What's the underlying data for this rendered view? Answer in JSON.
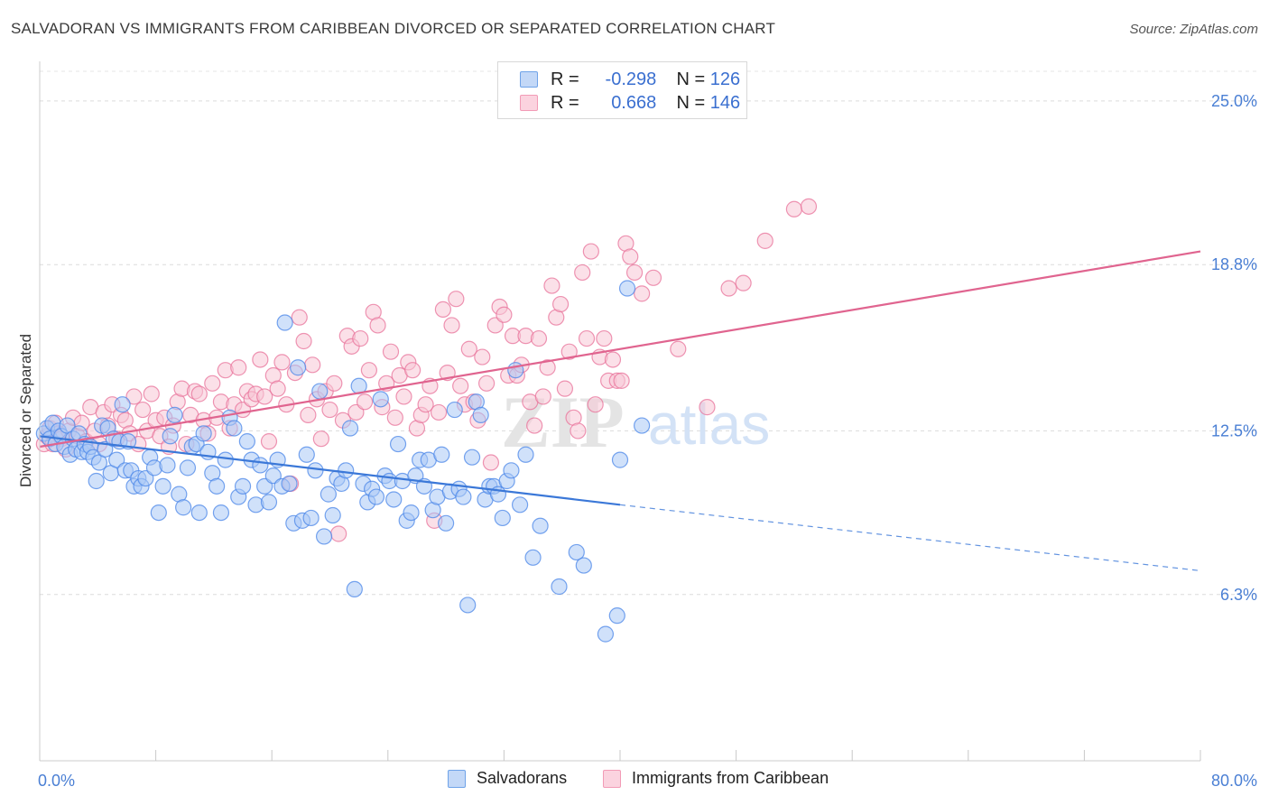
{
  "title": "SALVADORAN VS IMMIGRANTS FROM CARIBBEAN DIVORCED OR SEPARATED CORRELATION CHART",
  "source": "Source: ZipAtlas.com",
  "watermark": "ZIPatlas",
  "legend_top": {
    "rows": [
      {
        "r_label": "R =",
        "r_value": "-0.298",
        "n_label": "N =",
        "n_value": "126",
        "color": "#6fa3e8"
      },
      {
        "r_label": "R =",
        "r_value": "0.668",
        "n_label": "N =",
        "n_value": "146",
        "color": "#f29bb6"
      }
    ]
  },
  "legend_bottom": [
    {
      "label": "Salvadorans",
      "color": "#6fa3e8"
    },
    {
      "label": "Immigrants from Caribbean",
      "color": "#f29bb6"
    }
  ],
  "chart_data": {
    "type": "scatter",
    "ylabel": "Divorced or Separated",
    "xlim": [
      0,
      80
    ],
    "ylim": [
      0,
      26.5
    ],
    "x_tick_labels": {
      "min": "0.0%",
      "max": "80.0%"
    },
    "y_ticks": [
      {
        "value": 6.3,
        "label": "6.3%"
      },
      {
        "value": 12.5,
        "label": "12.5%"
      },
      {
        "value": 18.8,
        "label": "18.8%"
      },
      {
        "value": 25.0,
        "label": "25.0%"
      }
    ],
    "grid": true,
    "series": [
      {
        "name": "Salvadorans",
        "color": "#4a86e8",
        "fill": "#a9c8f5",
        "trend": {
          "x0": 0,
          "y0": 12.3,
          "x1": 40,
          "y1": 9.7,
          "x_end": 80,
          "y_end": 7.2
        },
        "points": [
          [
            0.3,
            12.4
          ],
          [
            0.5,
            12.6
          ],
          [
            0.7,
            12.2
          ],
          [
            0.9,
            12.8
          ],
          [
            1.1,
            12.0
          ],
          [
            1.3,
            12.5
          ],
          [
            1.5,
            12.3
          ],
          [
            1.7,
            11.9
          ],
          [
            1.9,
            12.7
          ],
          [
            2.1,
            11.6
          ],
          [
            2.3,
            12.2
          ],
          [
            2.5,
            11.8
          ],
          [
            2.7,
            12.4
          ],
          [
            2.9,
            11.7
          ],
          [
            3.1,
            12.0
          ],
          [
            3.3,
            11.7
          ],
          [
            3.5,
            11.9
          ],
          [
            3.7,
            11.5
          ],
          [
            3.9,
            10.6
          ],
          [
            4.1,
            11.3
          ],
          [
            4.3,
            12.7
          ],
          [
            4.5,
            11.8
          ],
          [
            4.7,
            12.6
          ],
          [
            4.9,
            10.9
          ],
          [
            5.1,
            12.2
          ],
          [
            5.3,
            11.4
          ],
          [
            5.5,
            12.1
          ],
          [
            5.7,
            13.5
          ],
          [
            5.9,
            11.0
          ],
          [
            6.1,
            12.1
          ],
          [
            6.3,
            11.0
          ],
          [
            6.5,
            10.4
          ],
          [
            6.8,
            10.7
          ],
          [
            7.0,
            10.4
          ],
          [
            7.3,
            10.7
          ],
          [
            7.6,
            11.5
          ],
          [
            7.9,
            11.1
          ],
          [
            8.2,
            9.4
          ],
          [
            8.5,
            10.4
          ],
          [
            8.8,
            11.2
          ],
          [
            9.0,
            12.3
          ],
          [
            9.3,
            13.1
          ],
          [
            9.6,
            10.1
          ],
          [
            9.9,
            9.6
          ],
          [
            10.2,
            11.1
          ],
          [
            10.5,
            11.9
          ],
          [
            10.8,
            12.0
          ],
          [
            11.0,
            9.4
          ],
          [
            11.3,
            12.4
          ],
          [
            11.6,
            11.7
          ],
          [
            11.9,
            10.9
          ],
          [
            12.2,
            10.4
          ],
          [
            12.5,
            9.4
          ],
          [
            12.8,
            11.4
          ],
          [
            13.1,
            13.0
          ],
          [
            13.4,
            12.6
          ],
          [
            13.7,
            10.0
          ],
          [
            14.0,
            10.4
          ],
          [
            14.3,
            12.1
          ],
          [
            14.6,
            11.4
          ],
          [
            14.9,
            9.7
          ],
          [
            15.2,
            11.2
          ],
          [
            15.5,
            10.4
          ],
          [
            15.8,
            9.8
          ],
          [
            16.1,
            10.8
          ],
          [
            16.4,
            11.4
          ],
          [
            16.7,
            10.4
          ],
          [
            16.9,
            16.6
          ],
          [
            17.2,
            10.5
          ],
          [
            17.5,
            9.0
          ],
          [
            17.8,
            14.9
          ],
          [
            18.1,
            9.1
          ],
          [
            18.4,
            11.6
          ],
          [
            18.7,
            9.2
          ],
          [
            19.0,
            11.0
          ],
          [
            19.3,
            14.0
          ],
          [
            19.6,
            8.5
          ],
          [
            19.9,
            10.1
          ],
          [
            20.2,
            9.3
          ],
          [
            20.5,
            10.7
          ],
          [
            20.8,
            10.5
          ],
          [
            21.1,
            11.0
          ],
          [
            21.4,
            12.6
          ],
          [
            21.7,
            6.5
          ],
          [
            22.0,
            14.2
          ],
          [
            22.3,
            10.5
          ],
          [
            22.6,
            9.8
          ],
          [
            22.9,
            10.3
          ],
          [
            23.2,
            10.0
          ],
          [
            23.5,
            13.7
          ],
          [
            23.8,
            10.8
          ],
          [
            24.1,
            10.6
          ],
          [
            24.4,
            9.9
          ],
          [
            24.7,
            12.0
          ],
          [
            25.0,
            10.6
          ],
          [
            25.3,
            9.1
          ],
          [
            25.6,
            9.4
          ],
          [
            25.9,
            10.8
          ],
          [
            26.2,
            11.4
          ],
          [
            26.5,
            10.4
          ],
          [
            26.8,
            11.4
          ],
          [
            27.1,
            9.5
          ],
          [
            27.4,
            10.0
          ],
          [
            27.7,
            11.6
          ],
          [
            28.0,
            9.0
          ],
          [
            28.3,
            10.2
          ],
          [
            28.6,
            13.3
          ],
          [
            28.9,
            10.3
          ],
          [
            29.2,
            10.0
          ],
          [
            29.5,
            5.9
          ],
          [
            29.8,
            11.5
          ],
          [
            30.1,
            13.6
          ],
          [
            30.4,
            13.1
          ],
          [
            30.7,
            9.9
          ],
          [
            31.0,
            10.4
          ],
          [
            31.3,
            10.4
          ],
          [
            31.6,
            10.1
          ],
          [
            31.9,
            9.2
          ],
          [
            32.2,
            10.6
          ],
          [
            32.5,
            11.0
          ],
          [
            32.8,
            14.8
          ],
          [
            33.1,
            9.7
          ],
          [
            33.5,
            11.6
          ],
          [
            34.0,
            7.7
          ],
          [
            34.5,
            8.9
          ],
          [
            35.8,
            6.6
          ],
          [
            37.0,
            7.9
          ],
          [
            37.5,
            7.4
          ],
          [
            39.0,
            4.8
          ],
          [
            39.8,
            5.5
          ],
          [
            40.0,
            11.4
          ],
          [
            40.5,
            17.9
          ],
          [
            41.5,
            12.7
          ]
        ]
      },
      {
        "name": "Immigrants from Caribbean",
        "color": "#e8729a",
        "fill": "#f7c6d5",
        "trend": {
          "x0": 0,
          "y0": 11.9,
          "x1": 80,
          "y1": 19.3
        },
        "points": [
          [
            0.3,
            12.0
          ],
          [
            0.5,
            12.3
          ],
          [
            0.7,
            12.6
          ],
          [
            0.9,
            12.0
          ],
          [
            1.1,
            12.8
          ],
          [
            1.3,
            12.4
          ],
          [
            1.5,
            12.2
          ],
          [
            1.8,
            11.8
          ],
          [
            2.0,
            12.5
          ],
          [
            2.3,
            13.0
          ],
          [
            2.6,
            12.3
          ],
          [
            2.9,
            12.8
          ],
          [
            3.2,
            12.1
          ],
          [
            3.5,
            13.4
          ],
          [
            3.8,
            12.5
          ],
          [
            4.1,
            12.0
          ],
          [
            4.4,
            13.2
          ],
          [
            4.7,
            12.7
          ],
          [
            5.0,
            13.5
          ],
          [
            5.3,
            12.2
          ],
          [
            5.6,
            13.1
          ],
          [
            5.9,
            12.9
          ],
          [
            6.2,
            12.4
          ],
          [
            6.5,
            13.8
          ],
          [
            6.8,
            12.0
          ],
          [
            7.1,
            13.3
          ],
          [
            7.4,
            12.5
          ],
          [
            7.7,
            13.9
          ],
          [
            8.0,
            12.9
          ],
          [
            8.3,
            12.3
          ],
          [
            8.6,
            13.0
          ],
          [
            8.9,
            11.9
          ],
          [
            9.2,
            12.7
          ],
          [
            9.5,
            13.6
          ],
          [
            9.8,
            14.1
          ],
          [
            10.1,
            12.0
          ],
          [
            10.4,
            13.1
          ],
          [
            10.7,
            14.0
          ],
          [
            11.0,
            13.9
          ],
          [
            11.3,
            12.9
          ],
          [
            11.6,
            12.4
          ],
          [
            11.9,
            14.3
          ],
          [
            12.2,
            13.0
          ],
          [
            12.5,
            13.6
          ],
          [
            12.8,
            14.8
          ],
          [
            13.1,
            12.6
          ],
          [
            13.4,
            13.5
          ],
          [
            13.7,
            14.9
          ],
          [
            14.0,
            13.3
          ],
          [
            14.3,
            14.0
          ],
          [
            14.6,
            13.7
          ],
          [
            14.9,
            13.9
          ],
          [
            15.2,
            15.2
          ],
          [
            15.5,
            13.8
          ],
          [
            15.8,
            12.1
          ],
          [
            16.1,
            14.6
          ],
          [
            16.4,
            14.1
          ],
          [
            16.7,
            15.1
          ],
          [
            17.0,
            13.5
          ],
          [
            17.3,
            10.5
          ],
          [
            17.6,
            14.7
          ],
          [
            17.9,
            16.8
          ],
          [
            18.2,
            15.9
          ],
          [
            18.5,
            13.1
          ],
          [
            18.8,
            15.0
          ],
          [
            19.1,
            13.7
          ],
          [
            19.4,
            12.2
          ],
          [
            19.7,
            14.0
          ],
          [
            20.0,
            13.3
          ],
          [
            20.3,
            14.3
          ],
          [
            20.6,
            8.6
          ],
          [
            20.9,
            12.9
          ],
          [
            21.2,
            16.1
          ],
          [
            21.5,
            15.7
          ],
          [
            21.8,
            13.2
          ],
          [
            22.1,
            16.0
          ],
          [
            22.4,
            13.6
          ],
          [
            22.7,
            14.8
          ],
          [
            23.0,
            17.0
          ],
          [
            23.3,
            16.5
          ],
          [
            23.6,
            13.4
          ],
          [
            23.9,
            14.3
          ],
          [
            24.2,
            15.5
          ],
          [
            24.5,
            13.0
          ],
          [
            24.8,
            14.6
          ],
          [
            25.1,
            13.8
          ],
          [
            25.4,
            15.1
          ],
          [
            25.7,
            14.8
          ],
          [
            26.0,
            12.6
          ],
          [
            26.3,
            13.1
          ],
          [
            26.6,
            13.5
          ],
          [
            26.9,
            14.2
          ],
          [
            27.2,
            9.1
          ],
          [
            27.5,
            13.2
          ],
          [
            27.8,
            17.1
          ],
          [
            28.1,
            14.7
          ],
          [
            28.4,
            16.5
          ],
          [
            28.7,
            17.5
          ],
          [
            29.0,
            14.2
          ],
          [
            29.3,
            13.5
          ],
          [
            29.6,
            15.6
          ],
          [
            29.9,
            13.6
          ],
          [
            30.2,
            12.9
          ],
          [
            30.5,
            15.3
          ],
          [
            30.8,
            14.3
          ],
          [
            31.1,
            11.3
          ],
          [
            31.4,
            16.5
          ],
          [
            31.7,
            17.2
          ],
          [
            32.0,
            16.9
          ],
          [
            32.3,
            14.6
          ],
          [
            32.6,
            16.1
          ],
          [
            32.9,
            14.6
          ],
          [
            33.2,
            15.0
          ],
          [
            33.5,
            16.1
          ],
          [
            33.8,
            13.6
          ],
          [
            34.1,
            12.7
          ],
          [
            34.4,
            16.0
          ],
          [
            34.7,
            13.8
          ],
          [
            35.0,
            14.9
          ],
          [
            35.3,
            18.0
          ],
          [
            35.6,
            16.8
          ],
          [
            35.9,
            17.3
          ],
          [
            36.2,
            14.1
          ],
          [
            36.5,
            15.5
          ],
          [
            36.8,
            13.0
          ],
          [
            37.1,
            12.5
          ],
          [
            37.4,
            18.5
          ],
          [
            37.7,
            16.0
          ],
          [
            38.0,
            19.3
          ],
          [
            38.3,
            13.5
          ],
          [
            38.6,
            15.3
          ],
          [
            38.9,
            16.0
          ],
          [
            39.2,
            14.4
          ],
          [
            39.5,
            15.2
          ],
          [
            39.8,
            14.4
          ],
          [
            40.1,
            14.4
          ],
          [
            40.4,
            19.6
          ],
          [
            40.7,
            19.1
          ],
          [
            41.0,
            18.5
          ],
          [
            41.5,
            17.7
          ],
          [
            42.3,
            18.3
          ],
          [
            44.0,
            15.6
          ],
          [
            46.0,
            13.4
          ],
          [
            47.5,
            17.9
          ],
          [
            48.5,
            18.1
          ],
          [
            50.0,
            19.7
          ],
          [
            52.0,
            20.9
          ],
          [
            53.0,
            21.0
          ]
        ]
      }
    ]
  }
}
